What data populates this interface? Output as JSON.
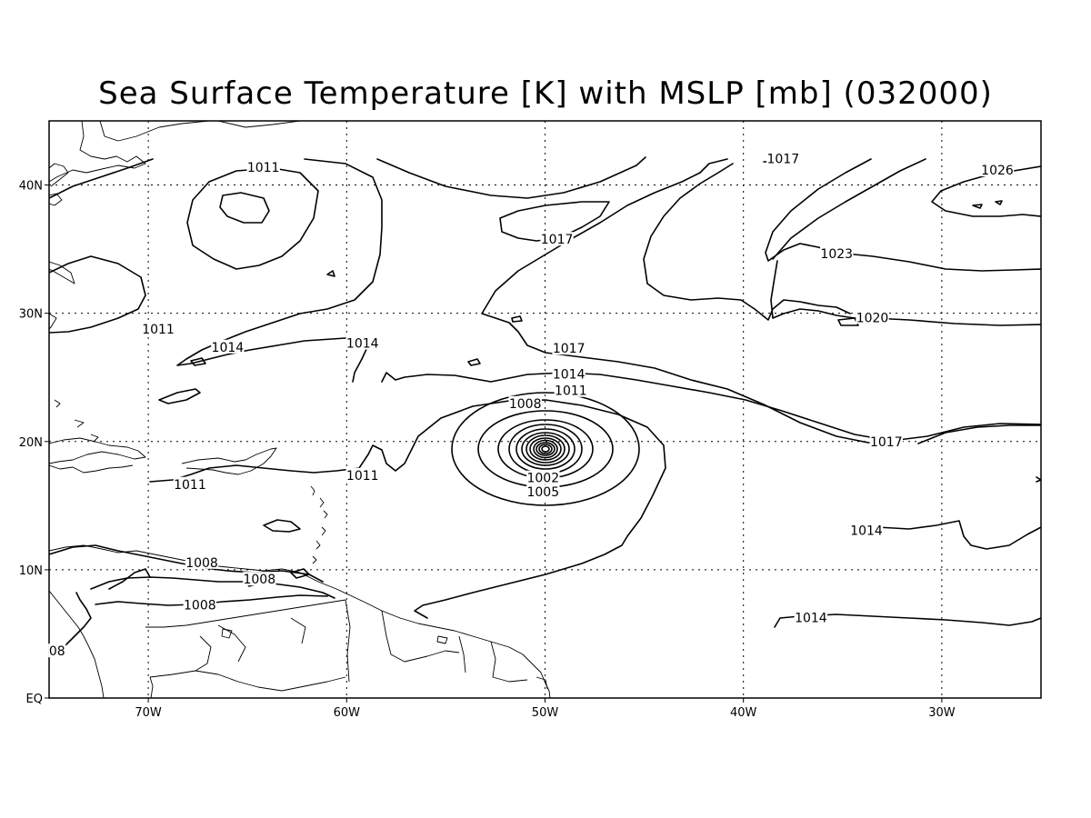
{
  "title": "Sea Surface Temperature [K] with MSLP [mb] (032000)",
  "map": {
    "lon_range": [
      -75,
      -25
    ],
    "lat_range": [
      0,
      45
    ],
    "lon_ticks": [
      {
        "value": -70,
        "label": "70W"
      },
      {
        "value": -60,
        "label": "60W"
      },
      {
        "value": -50,
        "label": "50W"
      },
      {
        "value": -40,
        "label": "40W"
      },
      {
        "value": -30,
        "label": "30W"
      }
    ],
    "lat_ticks": [
      {
        "value": 0,
        "label": "EQ"
      },
      {
        "value": 10,
        "label": "10N"
      },
      {
        "value": 20,
        "label": "20N"
      },
      {
        "value": 30,
        "label": "30N"
      },
      {
        "value": 40,
        "label": "40N"
      }
    ],
    "grid": true,
    "contour_labels": [
      {
        "text": "1011",
        "lon": -69.5,
        "lat": 28.7
      },
      {
        "text": "1011",
        "lon": -64.2,
        "lat": 41.3
      },
      {
        "text": "1014",
        "lon": -66.0,
        "lat": 27.3
      },
      {
        "text": "1014",
        "lon": -59.2,
        "lat": 27.6
      },
      {
        "text": "1011",
        "lon": -59.2,
        "lat": 17.3
      },
      {
        "text": "1011",
        "lon": -67.9,
        "lat": 16.6
      },
      {
        "text": "1008",
        "lon": -67.3,
        "lat": 10.5
      },
      {
        "text": "1008",
        "lon": -64.4,
        "lat": 9.2
      },
      {
        "text": "1008",
        "lon": -67.4,
        "lat": 7.2
      },
      {
        "text": "08",
        "lon": -74.6,
        "lat": 3.6
      },
      {
        "text": "1017",
        "lon": -49.4,
        "lat": 35.7
      },
      {
        "text": "1017",
        "lon": -38.0,
        "lat": 42.0
      },
      {
        "text": "1026",
        "lon": -27.2,
        "lat": 41.1
      },
      {
        "text": "1023",
        "lon": -35.3,
        "lat": 34.6
      },
      {
        "text": "1020",
        "lon": -33.5,
        "lat": 29.6
      },
      {
        "text": "1017",
        "lon": -48.8,
        "lat": 27.2
      },
      {
        "text": "1014",
        "lon": -48.8,
        "lat": 25.2
      },
      {
        "text": "1011",
        "lon": -48.7,
        "lat": 23.9
      },
      {
        "text": "1008",
        "lon": -51.0,
        "lat": 22.9
      },
      {
        "text": "1002",
        "lon": -50.1,
        "lat": 17.1
      },
      {
        "text": "1005",
        "lon": -50.1,
        "lat": 16.0
      },
      {
        "text": "1017",
        "lon": -32.8,
        "lat": 19.9
      },
      {
        "text": "1014",
        "lon": -33.8,
        "lat": 13.0
      },
      {
        "text": "1014",
        "lon": -36.6,
        "lat": 6.2
      }
    ]
  }
}
